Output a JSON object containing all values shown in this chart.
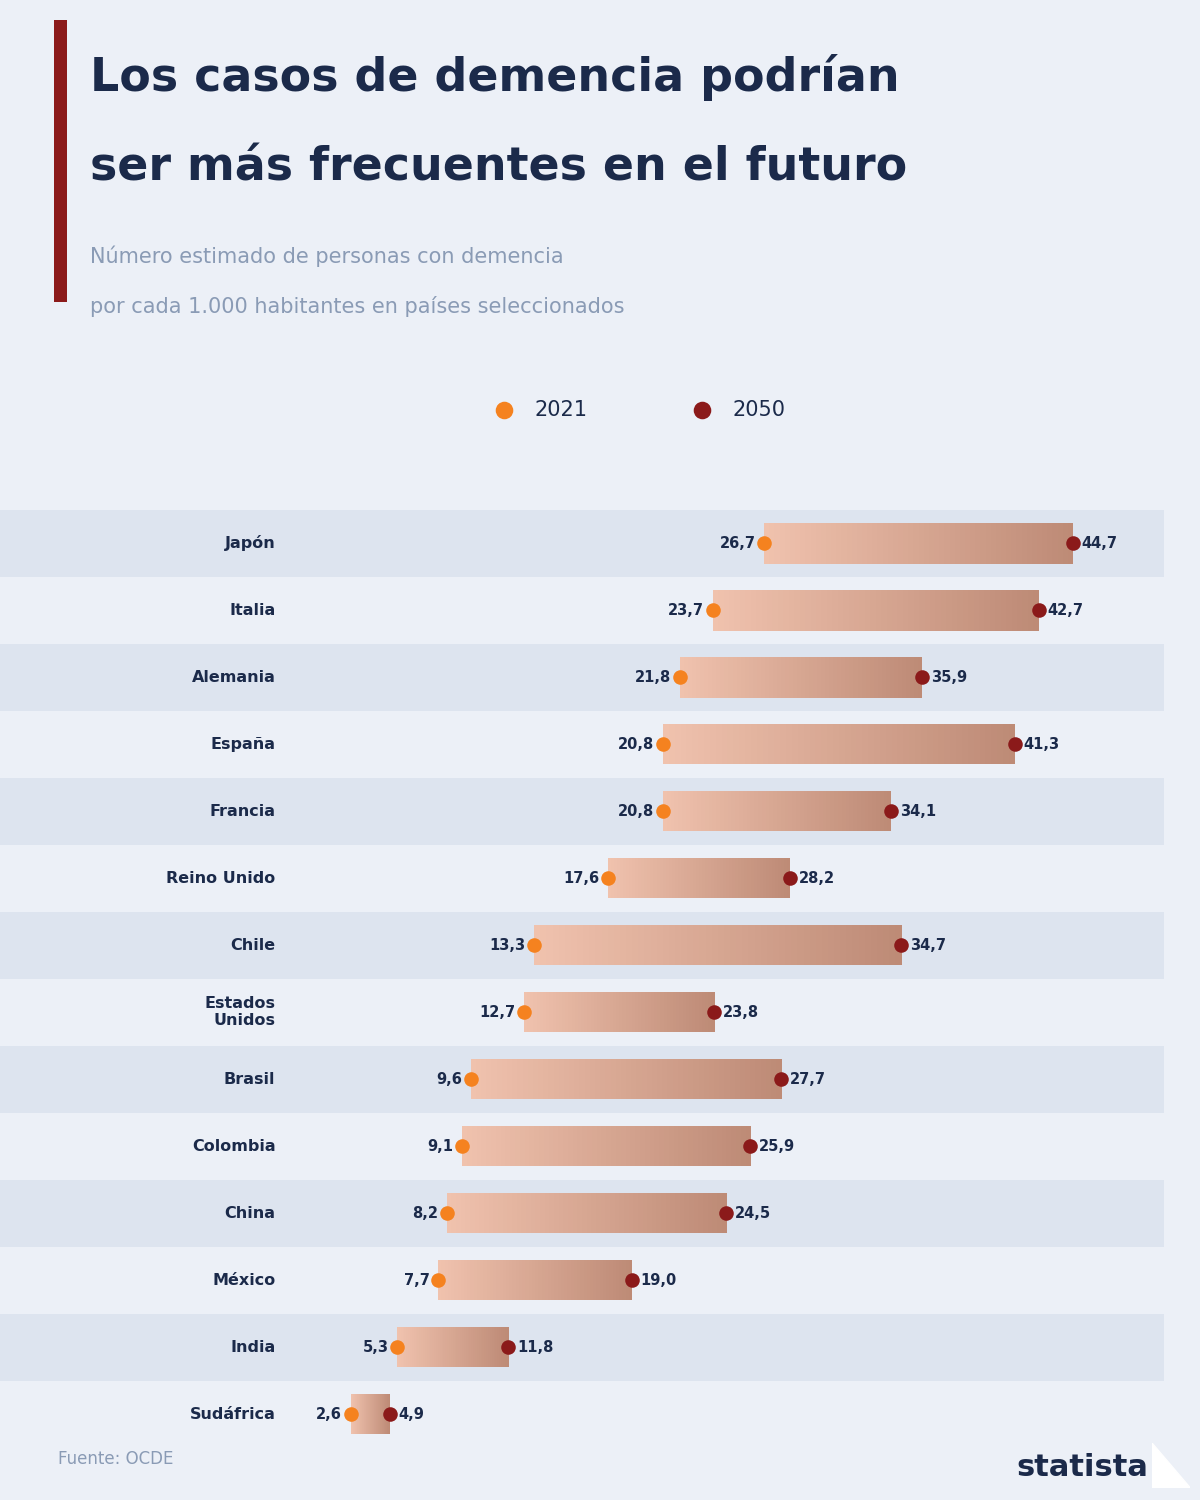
{
  "title_line1": "Los casos de demencia podrían",
  "title_line2": "ser más frecuentes en el futuro",
  "subtitle_line1": "Número estimado de personas con demencia",
  "subtitle_line2": "por cada 1.000 habitantes en países seleccionados",
  "source": "Fuente: OCDE",
  "countries": [
    "Japón",
    "Italia",
    "Alemania",
    "España",
    "Francia",
    "Reino Unido",
    "Chile",
    "Estados\nUnidos",
    "Brasil",
    "Colombia",
    "China",
    "México",
    "India",
    "Sudáfrica"
  ],
  "values_2021": [
    26.7,
    23.7,
    21.8,
    20.8,
    20.8,
    17.6,
    13.3,
    12.7,
    9.6,
    9.1,
    8.2,
    7.7,
    5.3,
    2.6
  ],
  "values_2050": [
    44.7,
    42.7,
    35.9,
    41.3,
    34.1,
    28.2,
    34.7,
    23.8,
    27.7,
    25.9,
    24.5,
    19.0,
    11.8,
    4.9
  ],
  "color_2021": "#F5821F",
  "color_2050": "#8B1A1A",
  "bg_color": "#ECF0F7",
  "row_bg_even": "#DDE4EF",
  "row_bg_odd": "#ECF0F7",
  "title_color": "#1B2A4A",
  "subtitle_color": "#8A9BB5",
  "accent_color": "#8B1A1A",
  "legend_2021": "2021",
  "legend_2050": "2050",
  "xlim_max": 50
}
